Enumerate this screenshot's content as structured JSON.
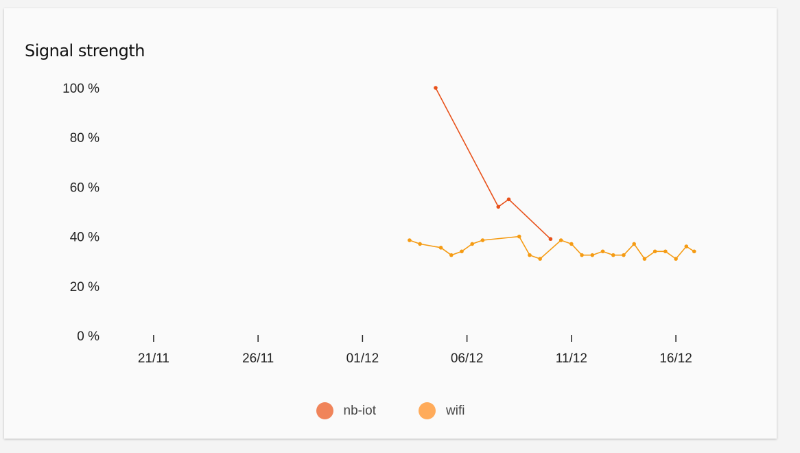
{
  "chart_data": {
    "type": "line",
    "title": "Signal strength",
    "xlabel": "",
    "ylabel": "",
    "y_ticks": [
      0,
      20,
      40,
      60,
      80,
      100
    ],
    "y_tick_suffix": " %",
    "ylim": [
      0,
      100
    ],
    "x_ticks": [
      "21/11",
      "26/11",
      "01/12",
      "06/12",
      "11/12",
      "16/12"
    ],
    "x_tick_dates": [
      "2023-11-21",
      "2023-11-26",
      "2023-12-01",
      "2023-12-06",
      "2023-12-11",
      "2023-12-16"
    ],
    "xlim": [
      "2023-11-19",
      "2023-12-18"
    ],
    "grid": false,
    "legend_position": "bottom",
    "series": [
      {
        "name": "nb-iot",
        "color": "#e8511a",
        "legend_color": "#f0845a",
        "points": [
          {
            "x": "2023-12-04T12:00",
            "y": 100
          },
          {
            "x": "2023-12-07T12:00",
            "y": 52
          },
          {
            "x": "2023-12-08T00:00",
            "y": 55
          },
          {
            "x": "2023-12-10T00:00",
            "y": 39
          }
        ]
      },
      {
        "name": "wifi",
        "color": "#f59b13",
        "legend_color": "#ffab5a",
        "points": [
          {
            "x": "2023-12-03T06:00",
            "y": 38.5
          },
          {
            "x": "2023-12-03T18:00",
            "y": 37
          },
          {
            "x": "2023-12-04T18:00",
            "y": 35.5
          },
          {
            "x": "2023-12-05T06:00",
            "y": 32.5
          },
          {
            "x": "2023-12-05T18:00",
            "y": 34
          },
          {
            "x": "2023-12-06T06:00",
            "y": 37
          },
          {
            "x": "2023-12-06T18:00",
            "y": 38.5
          },
          {
            "x": "2023-12-08T12:00",
            "y": 40
          },
          {
            "x": "2023-12-09T00:00",
            "y": 32.5
          },
          {
            "x": "2023-12-09T12:00",
            "y": 31
          },
          {
            "x": "2023-12-10T12:00",
            "y": 38.5
          },
          {
            "x": "2023-12-11T00:00",
            "y": 37
          },
          {
            "x": "2023-12-11T12:00",
            "y": 32.5
          },
          {
            "x": "2023-12-12T00:00",
            "y": 32.5
          },
          {
            "x": "2023-12-12T12:00",
            "y": 34
          },
          {
            "x": "2023-12-13T00:00",
            "y": 32.5
          },
          {
            "x": "2023-12-13T12:00",
            "y": 32.5
          },
          {
            "x": "2023-12-14T00:00",
            "y": 37
          },
          {
            "x": "2023-12-14T12:00",
            "y": 31
          },
          {
            "x": "2023-12-15T00:00",
            "y": 34
          },
          {
            "x": "2023-12-15T12:00",
            "y": 34
          },
          {
            "x": "2023-12-16T00:00",
            "y": 31
          },
          {
            "x": "2023-12-16T12:00",
            "y": 36
          },
          {
            "x": "2023-12-16T21:00",
            "y": 34
          }
        ]
      }
    ]
  }
}
